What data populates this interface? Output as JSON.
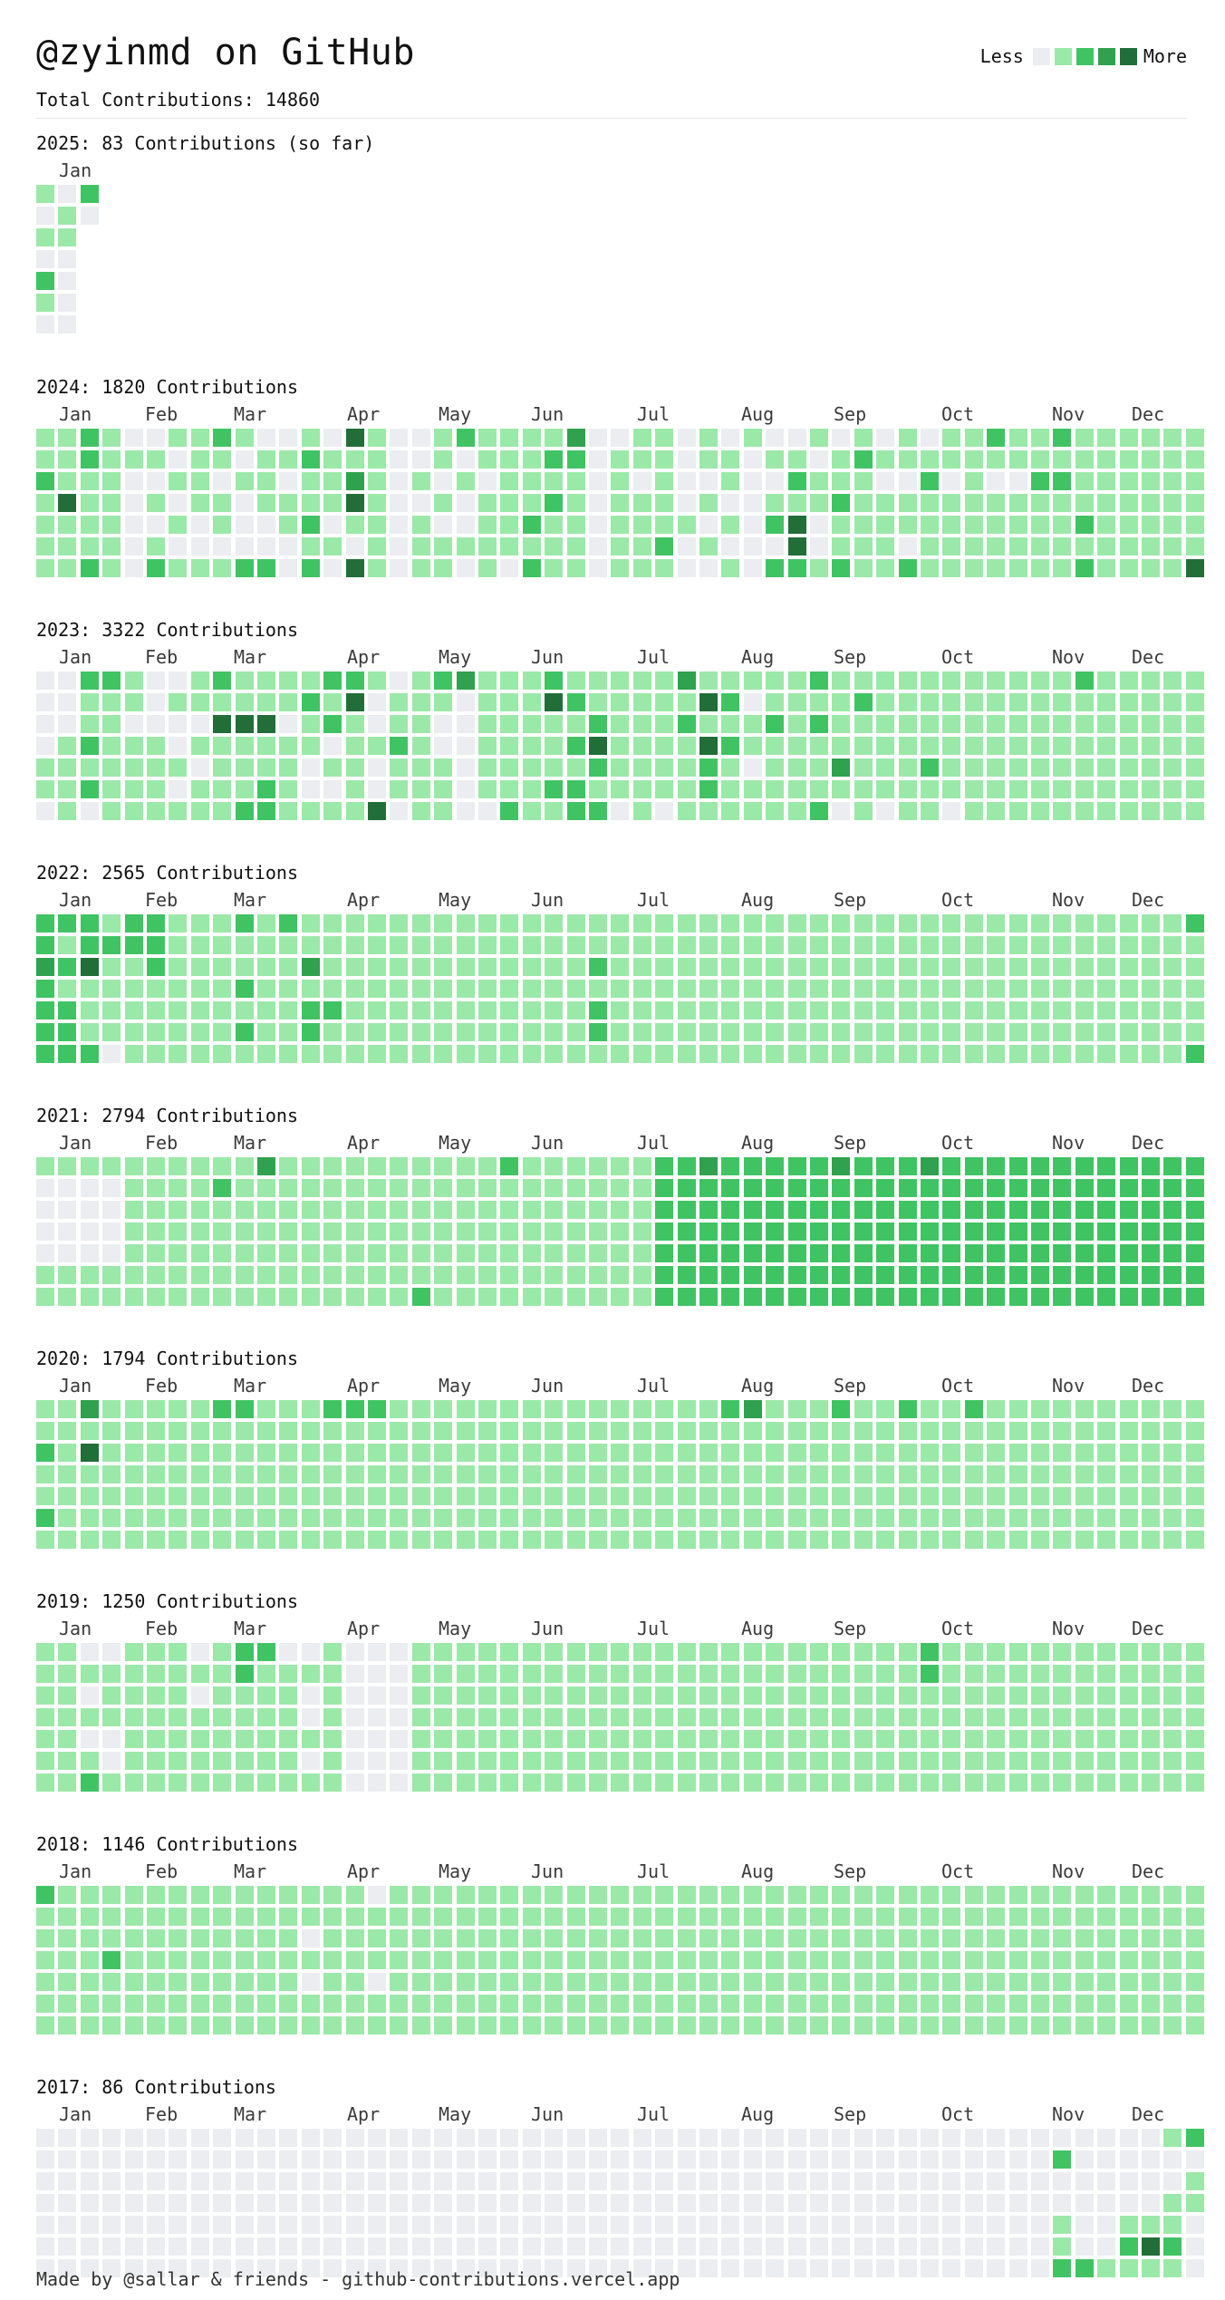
{
  "header": {
    "title": "@zyinmd on GitHub",
    "total_label": "Total Contributions:",
    "total_value": "14860"
  },
  "legend": {
    "less": "Less",
    "more": "More",
    "colors": [
      "#ebedf0",
      "#9be9a8",
      "#40c463",
      "#30a14e",
      "#216e39"
    ]
  },
  "years": [
    {
      "year": "2025",
      "count": "83",
      "suffix": "Contributions (so far)",
      "months": [
        "Jan"
      ],
      "weeks": 3,
      "levels": [
        "1010210",
        "0110000",
        "20xxxxx"
      ]
    },
    {
      "year": "2024",
      "count": "1820",
      "suffix": "Contributions",
      "months": [
        "Jan",
        "Feb",
        "Mar",
        "Apr",
        "May",
        "Jun",
        "Jul",
        "Aug",
        "Sep",
        "Oct",
        "Nov",
        "Dec"
      ],
      "weeks": 53,
      "levels": [
        "1121111",
        "1114111",
        "2211112",
        "1111111",
        "0100000",
        "0101012",
        "1010101",
        "1111001",
        "2101101",
        "1010002",
        "0111002",
        "0101100",
        "1211212",
        "0111010",
        "4134104",
        "1111111",
        "0000000",
        "0010111",
        "1101011",
        "2010010",
        "1101111",
        "1111110",
        "1111212",
        "1212111",
        "3211111",
        "0000000",
        "0111111",
        "1101111",
        "1111121",
        "0000100",
        "1101010",
        "0110101",
        "1000000",
        "0101202",
        "0121442",
        "1011001",
        "0112112",
        "1211111",
        "0101111",
        "1101102",
        "0121111",
        "1101111",
        "1111111",
        "2101111",
        "1101111",
        "1121111",
        "2121111",
        "1111212",
        "1111111",
        "1111111",
        "1111111",
        "1111111",
        "1111114"
      ]
    },
    {
      "year": "2023",
      "count": "3322",
      "suffix": "Contributions",
      "months": [
        "Jan",
        "Feb",
        "Mar",
        "Apr",
        "May",
        "Jun",
        "Jul",
        "Aug",
        "Sep",
        "Oct",
        "Nov",
        "Dec"
      ],
      "weeks": 53,
      "levels": [
        "0000110",
        "0001111",
        "2112120",
        "2111111",
        "1101111",
        "0001111",
        "0100101",
        "1101011",
        "2141111",
        "1141112",
        "1141122",
        "1101111",
        "1211001",
        "2120101",
        "2411111",
        "1001004",
        "0112110",
        "1111111",
        "2100111",
        "3000000",
        "1111110",
        "1111112",
        "1111111",
        "2411121",
        "1212122",
        "1124212",
        "1111110",
        "1111111",
        "1111110",
        "3121111",
        "1414221",
        "1212111",
        "1011011",
        "1121111",
        "1111111",
        "2121112",
        "1111310",
        "1211111",
        "1111110",
        "1111111",
        "1111211",
        "1111110",
        "1111111",
        "1111111",
        "1111111",
        "1111111",
        "1111111",
        "2111111",
        "1111111",
        "1111111",
        "1111111",
        "1111111",
        "1111111"
      ]
    },
    {
      "year": "2022",
      "count": "2565",
      "suffix": "Contributions",
      "months": [
        "Jan",
        "Feb",
        "Mar",
        "Apr",
        "May",
        "Jun",
        "Jul",
        "Aug",
        "Sep",
        "Oct",
        "Nov",
        "Dec"
      ],
      "weeks": 53,
      "levels": [
        "2232222",
        "2121222",
        "2241112",
        "1211110",
        "2211111",
        "2221111",
        "1111111",
        "1111111",
        "1111111",
        "2112121",
        "1111111",
        "2111111",
        "1131221",
        "1111211",
        "1111111",
        "1111111",
        "1111111",
        "1111111",
        "1111111",
        "1111111",
        "1111111",
        "1111111",
        "1111111",
        "1111111",
        "1111111",
        "1121221",
        "1111111",
        "1111111",
        "1111111",
        "1111111",
        "1111111",
        "1111111",
        "1111111",
        "1111111",
        "1111111",
        "1111111",
        "1111111",
        "1111111",
        "1111111",
        "1111111",
        "1111111",
        "1111111",
        "1111111",
        "1111111",
        "1111111",
        "1111111",
        "1111111",
        "1111111",
        "1111111",
        "1111111",
        "1111111",
        "1111111",
        "2111112"
      ]
    },
    {
      "year": "2021",
      "count": "2794",
      "suffix": "Contributions",
      "months": [
        "Jan",
        "Feb",
        "Mar",
        "Apr",
        "May",
        "Jun",
        "Jul",
        "Aug",
        "Sep",
        "Oct",
        "Nov",
        "Dec"
      ],
      "weeks": 53,
      "levels": [
        "1000011",
        "1000011",
        "1000011",
        "1000011",
        "1111111",
        "1111111",
        "1111111",
        "1111111",
        "1211111",
        "1111111",
        "3111111",
        "1111111",
        "1111111",
        "1111111",
        "1111111",
        "1111111",
        "1111111",
        "1111112",
        "1111111",
        "1111111",
        "1111111",
        "2111111",
        "1111111",
        "1111111",
        "1111111",
        "1111111",
        "1111111",
        "1111111",
        "2222222",
        "2222222",
        "3222222",
        "2222222",
        "2222222",
        "2222222",
        "2222222",
        "2222222",
        "3222222",
        "2222222",
        "2222222",
        "2222222",
        "3222222",
        "2222222",
        "2222222",
        "2222222",
        "2222222",
        "2222222",
        "2222222",
        "2222222",
        "2222222",
        "2222222",
        "2222222",
        "2222222",
        "2222222"
      ]
    },
    {
      "year": "2020",
      "count": "1794",
      "suffix": "Contributions",
      "months": [
        "Jan",
        "Feb",
        "Mar",
        "Apr",
        "May",
        "Jun",
        "Jul",
        "Aug",
        "Sep",
        "Oct",
        "Nov",
        "Dec"
      ],
      "weeks": 53,
      "levels": [
        "1121121",
        "1111111",
        "3141111",
        "1111111",
        "1111111",
        "1111111",
        "1111111",
        "1111111",
        "2111111",
        "2111111",
        "1111111",
        "1111111",
        "1111111",
        "2111111",
        "2111111",
        "2111111",
        "1111111",
        "1111111",
        "1111111",
        "1111111",
        "1111111",
        "1111111",
        "1111111",
        "1111111",
        "1111111",
        "1111111",
        "1111111",
        "1111111",
        "1111111",
        "1111111",
        "1111111",
        "2111111",
        "3111111",
        "1111111",
        "1111111",
        "1111111",
        "2111111",
        "1111111",
        "1111111",
        "2111111",
        "1111111",
        "1111111",
        "2111111",
        "1111111",
        "1111111",
        "1111111",
        "1111111",
        "1111111",
        "1111111",
        "1111111",
        "1111111",
        "1111111",
        "1111111"
      ]
    },
    {
      "year": "2019",
      "count": "1250",
      "suffix": "Contributions",
      "months": [
        "Jan",
        "Feb",
        "Mar",
        "Apr",
        "May",
        "Jun",
        "Jul",
        "Aug",
        "Sep",
        "Oct",
        "Nov",
        "Dec"
      ],
      "weeks": 53,
      "levels": [
        "1111111",
        "1111111",
        "0101012",
        "0111001",
        "1111111",
        "1111111",
        "1111111",
        "0101111",
        "1111111",
        "2211111",
        "2111111",
        "0111111",
        "0100101",
        "1111111",
        "0000000",
        "0000000",
        "0000000",
        "1111111",
        "1111111",
        "1111111",
        "1111111",
        "1111111",
        "1111111",
        "1111111",
        "1111111",
        "1111111",
        "1111111",
        "1111111",
        "1111111",
        "1111111",
        "1111111",
        "1111111",
        "1111111",
        "1111111",
        "1111111",
        "1111111",
        "1111111",
        "1111111",
        "1111111",
        "1111111",
        "2211111",
        "1111111",
        "1111111",
        "1111111",
        "1111111",
        "1111111",
        "1111111",
        "1111111",
        "1111111",
        "1111111",
        "1111111",
        "1111111",
        "1111111"
      ]
    },
    {
      "year": "2018",
      "count": "1146",
      "suffix": "Contributions",
      "months": [
        "Jan",
        "Feb",
        "Mar",
        "Apr",
        "May",
        "Jun",
        "Jul",
        "Aug",
        "Sep",
        "Oct",
        "Nov",
        "Dec"
      ],
      "weeks": 53,
      "levels": [
        "2111111",
        "1111111",
        "1111111",
        "1112111",
        "1111111",
        "1111111",
        "1111111",
        "1111111",
        "1111111",
        "1111111",
        "1111111",
        "1111111",
        "1101011",
        "1111111",
        "1111111",
        "0111011",
        "1111111",
        "1111111",
        "1111111",
        "1111111",
        "1111111",
        "1111111",
        "1111111",
        "1111111",
        "1111111",
        "1111111",
        "1111111",
        "1111111",
        "1111111",
        "1111111",
        "1111111",
        "1111111",
        "1111111",
        "1111111",
        "1111111",
        "1111111",
        "1111111",
        "1111111",
        "1111111",
        "1111111",
        "1111111",
        "1111111",
        "1111111",
        "1111111",
        "1111111",
        "1111111",
        "1111111",
        "1111111",
        "1111111",
        "1111111",
        "1111111",
        "1111111",
        "1111111"
      ]
    },
    {
      "year": "2017",
      "count": "86",
      "suffix": "Contributions",
      "months": [
        "Jan",
        "Feb",
        "Mar",
        "Apr",
        "May",
        "Jun",
        "Jul",
        "Aug",
        "Sep",
        "Oct",
        "Nov",
        "Dec"
      ],
      "weeks": 53,
      "levels": [
        "0000000",
        "0000000",
        "0000000",
        "0000000",
        "0000000",
        "0000000",
        "0000000",
        "0000000",
        "0000000",
        "0000000",
        "0000000",
        "0000000",
        "0000000",
        "0000000",
        "0000000",
        "0000000",
        "0000000",
        "0000000",
        "0000000",
        "0000000",
        "0000000",
        "0000000",
        "0000000",
        "0000000",
        "0000000",
        "0000000",
        "0000000",
        "0000000",
        "0000000",
        "0000000",
        "0000000",
        "0000000",
        "0000000",
        "0000000",
        "0000000",
        "0000000",
        "0000000",
        "0000000",
        "0000000",
        "0000000",
        "0000000",
        "0000000",
        "0000000",
        "0000000",
        "0000000",
        "0000000",
        "0200112",
        "0000002",
        "0000001",
        "0000121",
        "0000141",
        "1001121",
        "2011000"
      ]
    }
  ],
  "footer": {
    "text": "Made by @sallar & friends - github-contributions.vercel.app"
  }
}
